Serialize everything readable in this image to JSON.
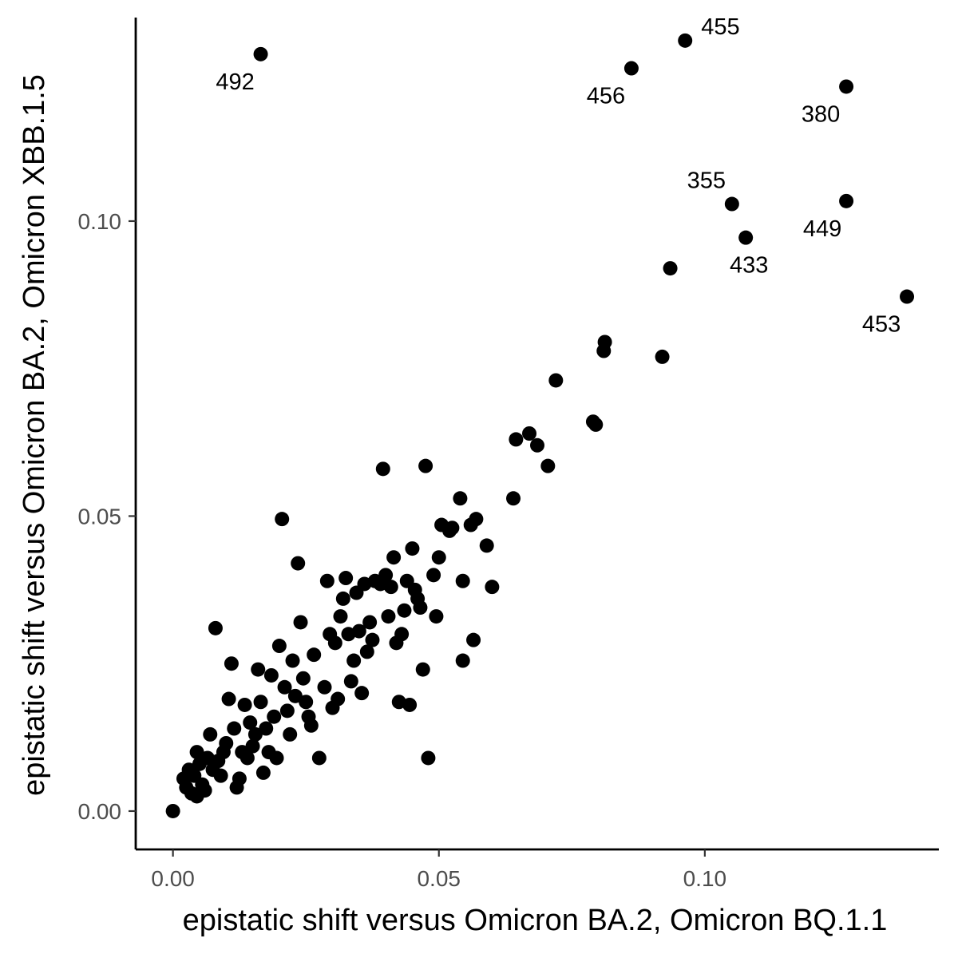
{
  "chart_data": {
    "type": "scatter",
    "xlabel": "epistatic shift versus Omicron BA.2, Omicron BQ.1.1",
    "ylabel": "epistatic shift versus Omicron BA.2, Omicron XBB.1.5",
    "xlim": [
      -0.007,
      0.144
    ],
    "ylim": [
      -0.0065,
      0.1345
    ],
    "xticks": [
      0.0,
      0.05,
      0.1
    ],
    "xtick_labels": [
      "0.00",
      "0.05",
      "0.10"
    ],
    "yticks": [
      0.0,
      0.05,
      0.1
    ],
    "ytick_labels": [
      "0.00",
      "0.05",
      "0.10"
    ],
    "grid": false,
    "legend": "none",
    "point_color": "#000000",
    "labeled_points": [
      {
        "label": "492",
        "x": 0.0165,
        "y": 0.1283
      },
      {
        "label": "455",
        "x": 0.0963,
        "y": 0.1306
      },
      {
        "label": "456",
        "x": 0.0862,
        "y": 0.1259
      },
      {
        "label": "380",
        "x": 0.1266,
        "y": 0.1228
      },
      {
        "label": "355",
        "x": 0.1051,
        "y": 0.1029
      },
      {
        "label": "449",
        "x": 0.1266,
        "y": 0.1034
      },
      {
        "label": "433",
        "x": 0.1077,
        "y": 0.0972
      },
      {
        "label": "453",
        "x": 0.138,
        "y": 0.0872
      }
    ],
    "points": [
      {
        "x": 0.0,
        "y": 0.0
      },
      {
        "x": 0.002,
        "y": 0.0055
      },
      {
        "x": 0.0025,
        "y": 0.004
      },
      {
        "x": 0.003,
        "y": 0.007
      },
      {
        "x": 0.0035,
        "y": 0.003
      },
      {
        "x": 0.004,
        "y": 0.006
      },
      {
        "x": 0.0045,
        "y": 0.01
      },
      {
        "x": 0.005,
        "y": 0.008
      },
      {
        "x": 0.0045,
        "y": 0.0025
      },
      {
        "x": 0.0055,
        "y": 0.0045
      },
      {
        "x": 0.006,
        "y": 0.0035
      },
      {
        "x": 0.0065,
        "y": 0.009
      },
      {
        "x": 0.007,
        "y": 0.013
      },
      {
        "x": 0.0075,
        "y": 0.007
      },
      {
        "x": 0.008,
        "y": 0.031
      },
      {
        "x": 0.0085,
        "y": 0.0085
      },
      {
        "x": 0.009,
        "y": 0.006
      },
      {
        "x": 0.0095,
        "y": 0.01
      },
      {
        "x": 0.01,
        "y": 0.0115
      },
      {
        "x": 0.0105,
        "y": 0.019
      },
      {
        "x": 0.011,
        "y": 0.025
      },
      {
        "x": 0.0115,
        "y": 0.014
      },
      {
        "x": 0.012,
        "y": 0.004
      },
      {
        "x": 0.0125,
        "y": 0.0055
      },
      {
        "x": 0.013,
        "y": 0.01
      },
      {
        "x": 0.0135,
        "y": 0.018
      },
      {
        "x": 0.014,
        "y": 0.009
      },
      {
        "x": 0.0145,
        "y": 0.015
      },
      {
        "x": 0.015,
        "y": 0.011
      },
      {
        "x": 0.0155,
        "y": 0.013
      },
      {
        "x": 0.016,
        "y": 0.024
      },
      {
        "x": 0.0165,
        "y": 0.0185
      },
      {
        "x": 0.017,
        "y": 0.0065
      },
      {
        "x": 0.0175,
        "y": 0.014
      },
      {
        "x": 0.018,
        "y": 0.01
      },
      {
        "x": 0.0185,
        "y": 0.023
      },
      {
        "x": 0.019,
        "y": 0.016
      },
      {
        "x": 0.0195,
        "y": 0.009
      },
      {
        "x": 0.02,
        "y": 0.028
      },
      {
        "x": 0.0205,
        "y": 0.0495
      },
      {
        "x": 0.021,
        "y": 0.021
      },
      {
        "x": 0.0215,
        "y": 0.017
      },
      {
        "x": 0.022,
        "y": 0.013
      },
      {
        "x": 0.0225,
        "y": 0.0255
      },
      {
        "x": 0.023,
        "y": 0.0195
      },
      {
        "x": 0.0235,
        "y": 0.042
      },
      {
        "x": 0.024,
        "y": 0.032
      },
      {
        "x": 0.0245,
        "y": 0.0225
      },
      {
        "x": 0.025,
        "y": 0.0185
      },
      {
        "x": 0.0255,
        "y": 0.016
      },
      {
        "x": 0.026,
        "y": 0.0145
      },
      {
        "x": 0.0265,
        "y": 0.0265
      },
      {
        "x": 0.0275,
        "y": 0.009
      },
      {
        "x": 0.0285,
        "y": 0.021
      },
      {
        "x": 0.029,
        "y": 0.039
      },
      {
        "x": 0.0295,
        "y": 0.03
      },
      {
        "x": 0.03,
        "y": 0.0175
      },
      {
        "x": 0.0305,
        "y": 0.0285
      },
      {
        "x": 0.031,
        "y": 0.019
      },
      {
        "x": 0.0315,
        "y": 0.033
      },
      {
        "x": 0.032,
        "y": 0.036
      },
      {
        "x": 0.0325,
        "y": 0.0395
      },
      {
        "x": 0.033,
        "y": 0.03
      },
      {
        "x": 0.0335,
        "y": 0.022
      },
      {
        "x": 0.034,
        "y": 0.0255
      },
      {
        "x": 0.0345,
        "y": 0.037
      },
      {
        "x": 0.035,
        "y": 0.0305
      },
      {
        "x": 0.0355,
        "y": 0.02
      },
      {
        "x": 0.036,
        "y": 0.0385
      },
      {
        "x": 0.0365,
        "y": 0.027
      },
      {
        "x": 0.037,
        "y": 0.032
      },
      {
        "x": 0.0375,
        "y": 0.029
      },
      {
        "x": 0.038,
        "y": 0.039
      },
      {
        "x": 0.039,
        "y": 0.0385
      },
      {
        "x": 0.0395,
        "y": 0.058
      },
      {
        "x": 0.04,
        "y": 0.04
      },
      {
        "x": 0.0405,
        "y": 0.033
      },
      {
        "x": 0.041,
        "y": 0.038
      },
      {
        "x": 0.0415,
        "y": 0.043
      },
      {
        "x": 0.042,
        "y": 0.0285
      },
      {
        "x": 0.0425,
        "y": 0.0185
      },
      {
        "x": 0.043,
        "y": 0.03
      },
      {
        "x": 0.0435,
        "y": 0.034
      },
      {
        "x": 0.044,
        "y": 0.039
      },
      {
        "x": 0.0445,
        "y": 0.018
      },
      {
        "x": 0.045,
        "y": 0.0445
      },
      {
        "x": 0.0455,
        "y": 0.0375
      },
      {
        "x": 0.046,
        "y": 0.036
      },
      {
        "x": 0.0465,
        "y": 0.0345
      },
      {
        "x": 0.047,
        "y": 0.024
      },
      {
        "x": 0.0475,
        "y": 0.0585
      },
      {
        "x": 0.048,
        "y": 0.009
      },
      {
        "x": 0.049,
        "y": 0.04
      },
      {
        "x": 0.0495,
        "y": 0.033
      },
      {
        "x": 0.05,
        "y": 0.043
      },
      {
        "x": 0.0505,
        "y": 0.0485
      },
      {
        "x": 0.052,
        "y": 0.0475
      },
      {
        "x": 0.0525,
        "y": 0.048
      },
      {
        "x": 0.054,
        "y": 0.053
      },
      {
        "x": 0.0545,
        "y": 0.039
      },
      {
        "x": 0.0545,
        "y": 0.0255
      },
      {
        "x": 0.056,
        "y": 0.0485
      },
      {
        "x": 0.0565,
        "y": 0.029
      },
      {
        "x": 0.057,
        "y": 0.0495
      },
      {
        "x": 0.059,
        "y": 0.045
      },
      {
        "x": 0.06,
        "y": 0.038
      },
      {
        "x": 0.064,
        "y": 0.053
      },
      {
        "x": 0.0645,
        "y": 0.063
      },
      {
        "x": 0.067,
        "y": 0.064
      },
      {
        "x": 0.0685,
        "y": 0.062
      },
      {
        "x": 0.0705,
        "y": 0.0585
      },
      {
        "x": 0.072,
        "y": 0.073
      },
      {
        "x": 0.079,
        "y": 0.066
      },
      {
        "x": 0.0795,
        "y": 0.0655
      },
      {
        "x": 0.081,
        "y": 0.078
      },
      {
        "x": 0.0812,
        "y": 0.0795
      },
      {
        "x": 0.092,
        "y": 0.077
      },
      {
        "x": 0.0935,
        "y": 0.092
      }
    ]
  }
}
